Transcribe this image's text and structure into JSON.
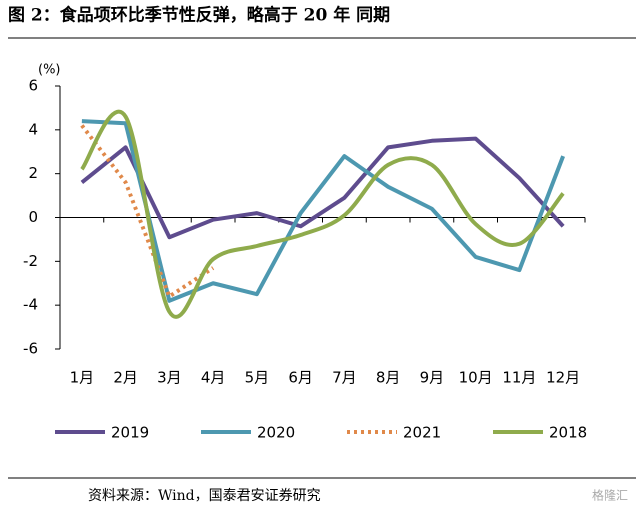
{
  "chart_data": {
    "type": "line",
    "title": "图 2：食品项环比季节性反弹，略高于 20 年 同期",
    "y_unit": "(%)",
    "source": "资料来源：Wind，国泰君安证券研究",
    "watermark": "格隆汇",
    "categories": [
      "1月",
      "2月",
      "3月",
      "4月",
      "5月",
      "6月",
      "7月",
      "8月",
      "9月",
      "10月",
      "11月",
      "12月"
    ],
    "series": [
      {
        "name": "2019",
        "color": "#5e4c8e",
        "style": "solid",
        "smooth": false,
        "values": [
          1.6,
          3.2,
          -0.9,
          -0.1,
          0.2,
          -0.4,
          0.9,
          3.2,
          3.5,
          3.6,
          1.8,
          -0.4
        ]
      },
      {
        "name": "2020",
        "color": "#4d98b0",
        "style": "solid",
        "smooth": false,
        "values": [
          4.4,
          4.3,
          -3.8,
          -3.0,
          -3.5,
          0.2,
          2.8,
          1.4,
          0.4,
          -1.8,
          -2.4,
          2.8
        ]
      },
      {
        "name": "2021",
        "color": "#e0894a",
        "style": "dotted",
        "smooth": false,
        "values": [
          4.2,
          1.6,
          -3.6,
          -2.3,
          null,
          null,
          null,
          null,
          null,
          null,
          null,
          null
        ]
      },
      {
        "name": "2018",
        "color": "#8fab4c",
        "style": "solid",
        "smooth": true,
        "values": [
          2.2,
          4.6,
          -4.3,
          -1.9,
          -1.3,
          -0.8,
          0.1,
          2.4,
          2.4,
          -0.3,
          -1.2,
          1.1
        ]
      }
    ],
    "ylim": [
      -6,
      6
    ],
    "yticks": [
      -6,
      -4,
      -2,
      0,
      2,
      4,
      6
    ]
  }
}
